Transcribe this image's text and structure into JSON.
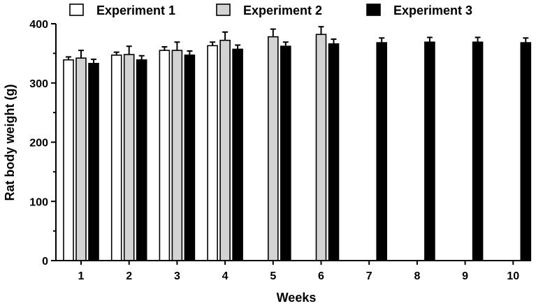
{
  "chart_data": {
    "type": "bar",
    "xlabel": "Weeks",
    "ylabel": "Rat body weight (g)",
    "ylim": [
      0,
      400
    ],
    "yticks": [
      0,
      100,
      200,
      300,
      400
    ],
    "categories": [
      "1",
      "2",
      "3",
      "4",
      "5",
      "6",
      "7",
      "8",
      "9",
      "10"
    ],
    "legend_position": "top",
    "series": [
      {
        "name": "Experiment 1",
        "color": "#ffffff",
        "values": [
          339,
          347,
          355,
          363,
          null,
          null,
          null,
          null,
          null,
          null
        ],
        "errors": [
          5,
          5,
          6,
          6,
          null,
          null,
          null,
          null,
          null,
          null
        ]
      },
      {
        "name": "Experiment 2",
        "color": "#d3d3d3",
        "values": [
          342,
          348,
          355,
          372,
          378,
          382,
          null,
          null,
          null,
          null
        ],
        "errors": [
          13,
          14,
          14,
          14,
          13,
          13,
          null,
          null,
          null,
          null
        ]
      },
      {
        "name": "Experiment 3",
        "color": "#000000",
        "values": [
          333,
          339,
          347,
          357,
          362,
          366,
          368,
          369,
          369,
          368
        ],
        "errors": [
          7,
          7,
          7,
          7,
          7,
          8,
          8,
          8,
          8,
          8
        ]
      }
    ]
  }
}
